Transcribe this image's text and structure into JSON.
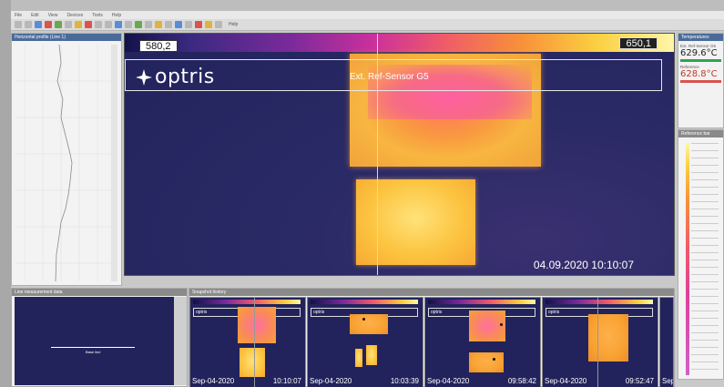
{
  "menubar": {
    "items": [
      "File",
      "Edit",
      "View",
      "Devices",
      "Tools",
      "Help"
    ]
  },
  "toolbar": {
    "help_label": "Help"
  },
  "left_panel": {
    "title": "Horizontal profile (Line 1)"
  },
  "main_view": {
    "scale_min": "580,2",
    "scale_max": "650,1",
    "logo_text": "optris",
    "sensor_label": "Ext. Ref-Sensor G5",
    "timestamp": "04.09.2020 10:10:07"
  },
  "temperatures": {
    "title": "Temperatures",
    "items": [
      {
        "label": "Ext. Ref-Sensor G5",
        "value": "629.6°C"
      },
      {
        "label": "Reference",
        "value": "628.8°C"
      }
    ]
  },
  "reference_panel": {
    "title": "Reference bar"
  },
  "bottom_left": {
    "title": "Line measurement data",
    "line_label": "Base line"
  },
  "history": {
    "title": "Snapshot history",
    "thumbs": [
      {
        "date": "Sep-04-2020",
        "time": "10:10:07"
      },
      {
        "date": "Sep-04-2020",
        "time": "10:03:39"
      },
      {
        "date": "Sep-04-2020",
        "time": "09:58:42"
      },
      {
        "date": "Sep-04-2020",
        "time": "09:52:47"
      },
      {
        "date": "Sep"
      }
    ],
    "thumb_logo": "optris"
  },
  "colors": {
    "palette": "iron",
    "accent_green": "#2ea44f",
    "accent_red": "#c0392b",
    "background_cold": "#22235c"
  }
}
